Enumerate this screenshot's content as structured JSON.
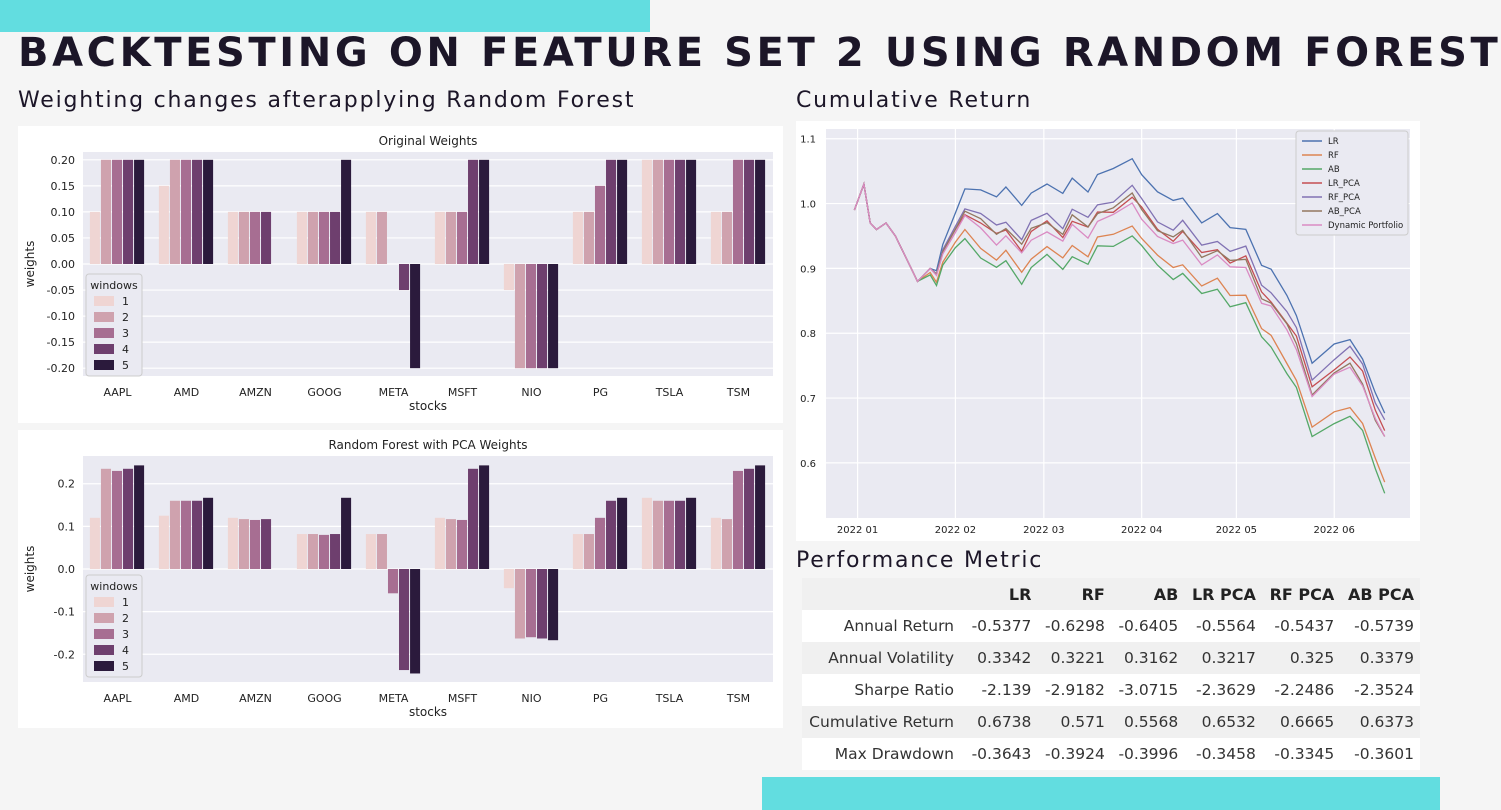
{
  "slide": {
    "title": "BACKTESTING ON FEATURE SET 2 USING RANDOM FOREST",
    "left_heading": "Weighting changes afterapplying Random Forest",
    "right_heading": "Cumulative Return",
    "table_heading": "Performance Metric",
    "colors": {
      "accent": "#62dde0",
      "background": "#f5f5f5",
      "text": "#1c1628"
    }
  },
  "chart_data": [
    {
      "type": "bar",
      "title": "Original Weights",
      "xlabel": "stocks",
      "ylabel": "weights",
      "categories": [
        "AAPL",
        "AMD",
        "AMZN",
        "GOOG",
        "META",
        "MSFT",
        "NIO",
        "PG",
        "TSLA",
        "TSM"
      ],
      "ylim": [
        -0.215,
        0.215
      ],
      "yticks": [
        0.2,
        0.15,
        0.1,
        0.05,
        0.0,
        -0.05,
        -0.1,
        -0.15,
        -0.2
      ],
      "ytick_labels": [
        "0.20",
        "0.15",
        "0.10",
        "0.05",
        "0.00",
        "-0.05",
        "-0.10",
        "-0.15",
        "-0.20"
      ],
      "legend": {
        "title": "windows",
        "placement": "lower-left"
      },
      "colors": [
        "#efd5d3",
        "#cfa2ae",
        "#a76e92",
        "#6e3f6e",
        "#2b1a3c"
      ],
      "series": [
        {
          "name": "1",
          "values": [
            0.1,
            0.15,
            0.1,
            0.1,
            0.1,
            0.1,
            -0.05,
            0.1,
            0.2,
            0.1
          ]
        },
        {
          "name": "2",
          "values": [
            0.2,
            0.2,
            0.1,
            0.1,
            0.1,
            0.1,
            -0.2,
            0.1,
            0.2,
            0.1
          ]
        },
        {
          "name": "3",
          "values": [
            0.2,
            0.2,
            0.1,
            0.1,
            0.0,
            0.1,
            -0.2,
            0.15,
            0.2,
            0.2
          ]
        },
        {
          "name": "4",
          "values": [
            0.2,
            0.2,
            0.1,
            0.1,
            -0.05,
            0.2,
            -0.2,
            0.2,
            0.2,
            0.2
          ]
        },
        {
          "name": "5",
          "values": [
            0.2,
            0.2,
            0.0,
            0.2,
            -0.2,
            0.2,
            -0.2,
            0.2,
            0.2,
            0.2
          ]
        }
      ]
    },
    {
      "type": "bar",
      "title": "Random Forest with PCA Weights",
      "xlabel": "stocks",
      "ylabel": "weights",
      "categories": [
        "AAPL",
        "AMD",
        "AMZN",
        "GOOG",
        "META",
        "MSFT",
        "NIO",
        "PG",
        "TSLA",
        "TSM"
      ],
      "ylim": [
        -0.265,
        0.265
      ],
      "yticks": [
        0.2,
        0.1,
        0.0,
        -0.1,
        -0.2
      ],
      "ytick_labels": [
        "0.2",
        "0.1",
        "0.0",
        "-0.1",
        "-0.2"
      ],
      "legend": {
        "title": "windows",
        "placement": "lower-left"
      },
      "colors": [
        "#efd5d3",
        "#cfa2ae",
        "#a76e92",
        "#6e3f6e",
        "#2b1a3c"
      ],
      "series": [
        {
          "name": "1",
          "values": [
            0.12,
            0.125,
            0.12,
            0.082,
            0.082,
            0.12,
            -0.045,
            0.082,
            0.167,
            0.12
          ]
        },
        {
          "name": "2",
          "values": [
            0.235,
            0.16,
            0.117,
            0.082,
            0.082,
            0.117,
            -0.163,
            0.082,
            0.16,
            0.117
          ]
        },
        {
          "name": "3",
          "values": [
            0.23,
            0.16,
            0.115,
            0.08,
            -0.057,
            0.115,
            -0.16,
            0.12,
            0.16,
            0.23
          ]
        },
        {
          "name": "4",
          "values": [
            0.235,
            0.16,
            0.117,
            0.082,
            -0.237,
            0.235,
            -0.163,
            0.16,
            0.16,
            0.235
          ]
        },
        {
          "name": "5",
          "values": [
            0.243,
            0.167,
            0.0,
            0.167,
            -0.245,
            0.243,
            -0.167,
            0.167,
            0.167,
            0.243
          ]
        }
      ]
    },
    {
      "type": "line",
      "title": "",
      "xlabel": "",
      "ylabel": "",
      "x_tick_labels": [
        "2022 01",
        "2022 02",
        "2022 03",
        "2022 04",
        "2022 05",
        "2022 06"
      ],
      "x_tick_dates": [
        "2022-01-01",
        "2022-02-01",
        "2022-03-01",
        "2022-04-01",
        "2022-05-01",
        "2022-06-01"
      ],
      "x_range": [
        "2021-12-22",
        "2022-06-25"
      ],
      "ylim": [
        0.515,
        1.115
      ],
      "yticks": [
        1.1,
        1.0,
        0.9,
        0.8,
        0.7,
        0.6
      ],
      "ytick_labels": [
        "1.1",
        "1.0",
        "0.9",
        "0.8",
        "0.7",
        "0.6"
      ],
      "legend": {
        "placement": "top-right"
      },
      "base_path": {
        "dates": [
          "2021-12-31",
          "2022-01-03",
          "2022-01-05",
          "2022-01-07",
          "2022-01-10",
          "2022-01-13",
          "2022-01-18",
          "2022-01-20",
          "2022-01-24",
          "2022-01-26",
          "2022-01-28",
          "2022-02-01",
          "2022-02-04",
          "2022-02-09",
          "2022-02-14",
          "2022-02-17",
          "2022-02-22",
          "2022-02-25",
          "2022-03-02",
          "2022-03-07",
          "2022-03-10",
          "2022-03-15",
          "2022-03-18",
          "2022-03-23",
          "2022-03-29",
          "2022-04-01",
          "2022-04-06",
          "2022-04-11",
          "2022-04-14",
          "2022-04-20",
          "2022-04-25",
          "2022-04-29",
          "2022-05-04",
          "2022-05-09",
          "2022-05-12",
          "2022-05-17",
          "2022-05-20",
          "2022-05-25",
          "2022-06-01",
          "2022-06-06",
          "2022-06-10",
          "2022-06-14",
          "2022-06-17"
        ],
        "values": [
          0.99,
          1.03,
          0.97,
          0.96,
          0.97,
          0.95,
          0.9,
          0.88,
          0.9,
          0.89,
          0.925,
          0.96,
          0.985,
          0.97,
          0.95,
          0.96,
          0.93,
          0.955,
          0.97,
          0.95,
          0.975,
          0.96,
          0.985,
          0.99,
          1.01,
          0.99,
          0.96,
          0.945,
          0.955,
          0.92,
          0.93,
          0.91,
          0.915,
          0.86,
          0.85,
          0.815,
          0.79,
          0.715,
          0.745,
          0.76,
          0.735,
          0.68,
          0.65
        ]
      },
      "series": [
        {
          "name": "LR",
          "color": "#4c72b0",
          "start_date": "2022-01-24",
          "offset": 0.065,
          "end": 0.6738
        },
        {
          "name": "RF",
          "color": "#dd8452",
          "start_date": "2022-01-20",
          "offset": -0.035,
          "end": 0.571
        },
        {
          "name": "AB",
          "color": "#55a868",
          "start_date": "2022-01-20",
          "offset": -0.05,
          "end": 0.5568
        },
        {
          "name": "LR_PCA",
          "color": "#c44e52",
          "start_date": "2022-01-24",
          "offset": 0.0,
          "end": 0.6532
        },
        {
          "name": "RF_PCA",
          "color": "#8172b3",
          "start_date": "2022-01-24",
          "offset": 0.015,
          "end": 0.6665
        },
        {
          "name": "AB_PCA",
          "color": "#937860",
          "start_date": "2022-01-24",
          "offset": 0.005,
          "end": 0.6373
        },
        {
          "name": "Dynamic Portfolio",
          "color": "#da8bc3",
          "start_date": "2022-01-24",
          "offset": -0.01,
          "end": 0.6373
        }
      ]
    }
  ],
  "metrics": {
    "columns": [
      "",
      "LR",
      "RF",
      "AB",
      "LR PCA",
      "RF PCA",
      "AB PCA"
    ],
    "rows": [
      {
        "label": "Annual Return",
        "values": [
          "-0.5377",
          "-0.6298",
          "-0.6405",
          "-0.5564",
          "-0.5437",
          "-0.5739"
        ]
      },
      {
        "label": "Annual Volatility",
        "values": [
          "0.3342",
          "0.3221",
          "0.3162",
          "0.3217",
          "0.325",
          "0.3379"
        ]
      },
      {
        "label": "Sharpe Ratio",
        "values": [
          "-2.139",
          "-2.9182",
          "-3.0715",
          "-2.3629",
          "-2.2486",
          "-2.3524"
        ]
      },
      {
        "label": "Cumulative Return",
        "values": [
          "0.6738",
          "0.571",
          "0.5568",
          "0.6532",
          "0.6665",
          "0.6373"
        ]
      },
      {
        "label": "Max Drawdown",
        "values": [
          "-0.3643",
          "-0.3924",
          "-0.3996",
          "-0.3458",
          "-0.3345",
          "-0.3601"
        ]
      }
    ]
  }
}
